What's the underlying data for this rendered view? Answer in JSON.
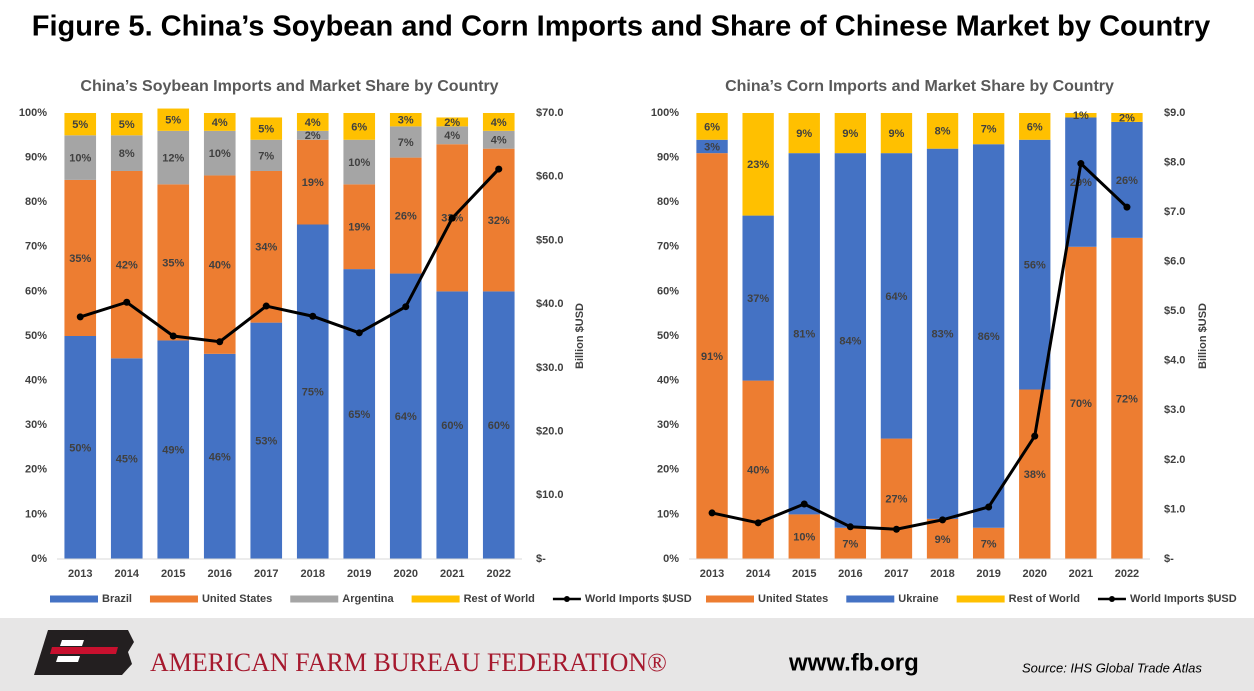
{
  "title": "Figure 5. China’s Soybean and Corn Imports and Share of Chinese Market by Country",
  "footer": {
    "organization": "AMERICAN FARM BUREAU FEDERATION®",
    "website": "www.fb.org",
    "source": "Source: IHS Global Trade Atlas"
  },
  "chart_data": [
    {
      "type": "bar",
      "stacked": true,
      "title": "China’s Soybean Imports and Market Share by Country",
      "categories": [
        "2013",
        "2014",
        "2015",
        "2016",
        "2017",
        "2018",
        "2019",
        "2020",
        "2021",
        "2022"
      ],
      "ylim": [
        0,
        100
      ],
      "yticks": [
        {
          "value": 0,
          "label": "0%"
        },
        {
          "value": 10,
          "label": "10%"
        },
        {
          "value": 20,
          "label": "20%"
        },
        {
          "value": 30,
          "label": "30%"
        },
        {
          "value": 40,
          "label": "40%"
        },
        {
          "value": 50,
          "label": "50%"
        },
        {
          "value": 60,
          "label": "60%"
        },
        {
          "value": 70,
          "label": "70%"
        },
        {
          "value": 80,
          "label": "80%"
        },
        {
          "value": 90,
          "label": "90%"
        },
        {
          "value": 100,
          "label": "100%"
        }
      ],
      "y2lim": [
        0,
        70
      ],
      "y2ticks": [
        {
          "value": 0,
          "label": "$-"
        },
        {
          "value": 10,
          "label": "$10.0"
        },
        {
          "value": 20,
          "label": "$20.0"
        },
        {
          "value": 30,
          "label": "$30.0"
        },
        {
          "value": 40,
          "label": "$40.0"
        },
        {
          "value": 50,
          "label": "$50.0"
        },
        {
          "value": 60,
          "label": "$60.0"
        },
        {
          "value": 70,
          "label": "$70.0"
        }
      ],
      "y2label": "Billion $USD",
      "grid": false,
      "legend": "bottom",
      "series": [
        {
          "name": "Brazil",
          "color": "#4472c4",
          "values": [
            50,
            45,
            49,
            46,
            53,
            75,
            65,
            64,
            60,
            60
          ],
          "value_labels": [
            "50%",
            "45%",
            "49%",
            "46%",
            "53%",
            "75%",
            "65%",
            "64%",
            "60%",
            "60%"
          ]
        },
        {
          "name": "United States",
          "color": "#ed7d31",
          "values": [
            35,
            42,
            35,
            40,
            34,
            19,
            19,
            26,
            33,
            32
          ],
          "value_labels": [
            "35%",
            "42%",
            "35%",
            "40%",
            "34%",
            "19%",
            "19%",
            "26%",
            "33%",
            "32%"
          ]
        },
        {
          "name": "Argentina",
          "color": "#a5a5a5",
          "values": [
            10,
            8,
            12,
            10,
            7,
            2,
            10,
            7,
            4,
            4
          ],
          "value_labels": [
            "10%",
            "8%",
            "12%",
            "10%",
            "7%",
            "2%",
            "10%",
            "7%",
            "4%",
            "4%"
          ]
        },
        {
          "name": "Rest of World",
          "color": "#ffc000",
          "values": [
            5,
            5,
            5,
            4,
            5,
            4,
            6,
            3,
            2,
            4
          ],
          "value_labels": [
            "5%",
            "5%",
            "5%",
            "4%",
            "5%",
            "4%",
            "6%",
            "3%",
            "2%",
            "4%"
          ]
        },
        {
          "name": "World Imports $USD",
          "type": "line",
          "axis": "y2",
          "color": "#000000",
          "values": [
            38.0,
            40.3,
            35.0,
            34.1,
            39.7,
            38.1,
            35.5,
            39.6,
            53.5,
            61.2
          ]
        }
      ]
    },
    {
      "type": "bar",
      "stacked": true,
      "title": "China’s Corn Imports and Market Share by Country",
      "categories": [
        "2013",
        "2014",
        "2015",
        "2016",
        "2017",
        "2018",
        "2019",
        "2020",
        "2021",
        "2022"
      ],
      "ylim": [
        0,
        100
      ],
      "yticks": [
        {
          "value": 0,
          "label": "0%"
        },
        {
          "value": 10,
          "label": "10%"
        },
        {
          "value": 20,
          "label": "20%"
        },
        {
          "value": 30,
          "label": "30%"
        },
        {
          "value": 40,
          "label": "40%"
        },
        {
          "value": 50,
          "label": "50%"
        },
        {
          "value": 60,
          "label": "60%"
        },
        {
          "value": 70,
          "label": "70%"
        },
        {
          "value": 80,
          "label": "80%"
        },
        {
          "value": 90,
          "label": "90%"
        },
        {
          "value": 100,
          "label": "100%"
        }
      ],
      "y2lim": [
        0,
        9
      ],
      "y2ticks": [
        {
          "value": 0,
          "label": "$-"
        },
        {
          "value": 1,
          "label": "$1.0"
        },
        {
          "value": 2,
          "label": "$2.0"
        },
        {
          "value": 3,
          "label": "$3.0"
        },
        {
          "value": 4,
          "label": "$4.0"
        },
        {
          "value": 5,
          "label": "$5.0"
        },
        {
          "value": 6,
          "label": "$6.0"
        },
        {
          "value": 7,
          "label": "$7.0"
        },
        {
          "value": 8,
          "label": "$8.0"
        },
        {
          "value": 9,
          "label": "$9.0"
        }
      ],
      "y2label": "Billion $USD",
      "grid": false,
      "legend": "bottom",
      "series": [
        {
          "name": "United States",
          "color": "#ed7d31",
          "values": [
            91,
            40,
            10,
            7,
            27,
            9,
            7,
            38,
            70,
            72
          ],
          "value_labels": [
            "91%",
            "40%",
            "10%",
            "7%",
            "27%",
            "9%",
            "7%",
            "38%",
            "70%",
            "72%"
          ]
        },
        {
          "name": "Ukraine",
          "color": "#4472c4",
          "values": [
            3,
            37,
            81,
            84,
            64,
            83,
            86,
            56,
            29,
            26
          ],
          "value_labels": [
            "3%",
            "37%",
            "81%",
            "84%",
            "64%",
            "83%",
            "86%",
            "56%",
            "29%",
            "26%"
          ]
        },
        {
          "name": "Rest of World",
          "color": "#ffc000",
          "values": [
            6,
            23,
            9,
            9,
            9,
            8,
            7,
            6,
            1,
            2
          ],
          "value_labels": [
            "6%",
            "23%",
            "9%",
            "9%",
            "9%",
            "8%",
            "7%",
            "6%",
            "1%",
            "2%"
          ]
        },
        {
          "name": "World Imports $USD",
          "type": "line",
          "axis": "y2",
          "color": "#000000",
          "values": [
            0.93,
            0.73,
            1.11,
            0.65,
            0.6,
            0.79,
            1.05,
            2.48,
            7.98,
            7.1
          ]
        }
      ]
    }
  ]
}
